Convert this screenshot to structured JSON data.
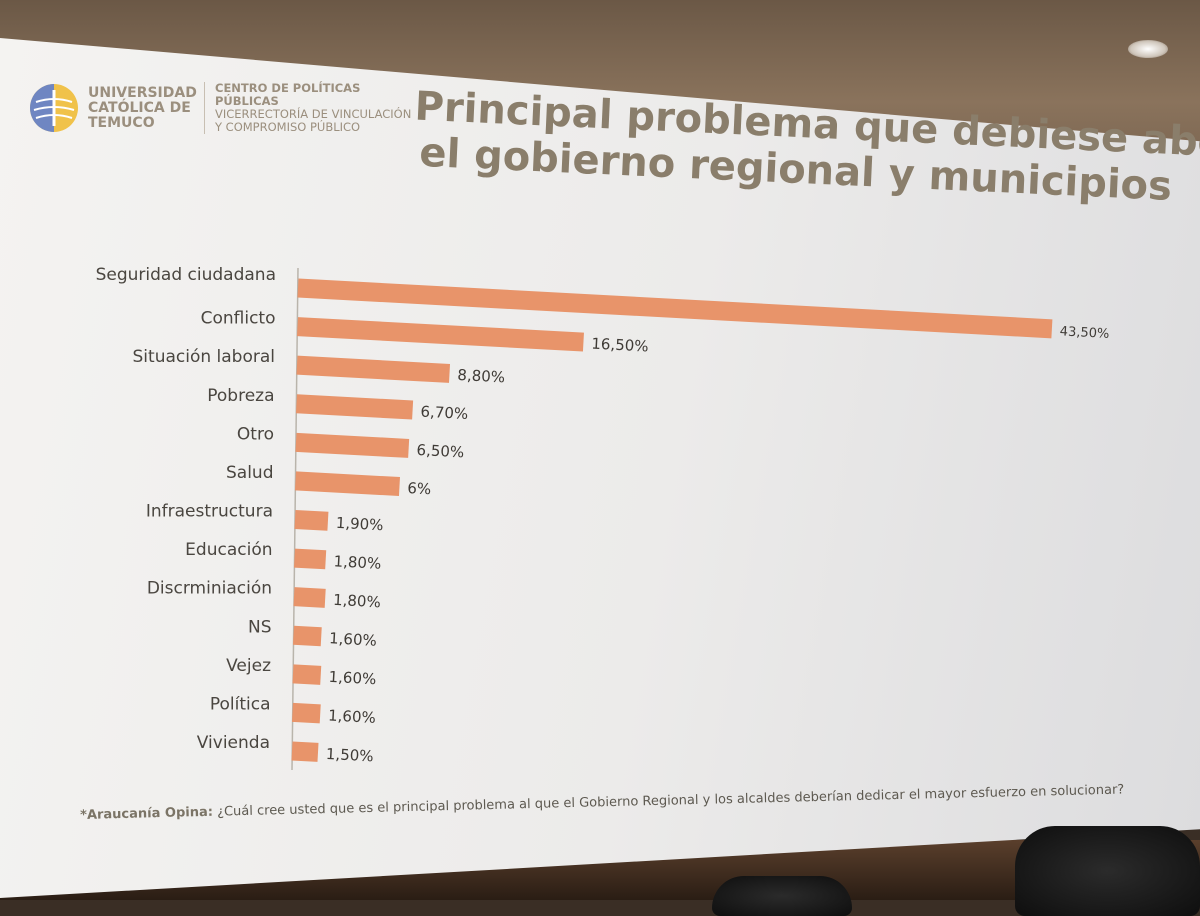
{
  "logo": {
    "university": [
      "UNIVERSIDAD",
      "CATÓLICA DE",
      "TEMUCO"
    ],
    "center_lines": [
      "CENTRO DE POLÍTICAS PÚBLICAS",
      "VICERRECTORÍA DE VINCULACIÓN",
      "Y COMPROMISO PÚBLICO"
    ]
  },
  "chart_data": {
    "type": "bar",
    "orientation": "horizontal",
    "title": "Principal problema que debiese abordar el gobierno regional y municipios",
    "title_lines": [
      "Principal problema que debiese abordar",
      "el gobierno regional y municipios"
    ],
    "categories": [
      "Seguridad ciudadana",
      "Conflicto",
      "Situación laboral",
      "Pobreza",
      "Otro",
      "Salud",
      "Infraestructura",
      "Educación",
      "Discrminiación",
      "NS",
      "Vejez",
      "Política",
      "Vivienda"
    ],
    "values": [
      43.5,
      16.5,
      8.8,
      6.7,
      6.5,
      6,
      1.9,
      1.8,
      1.8,
      1.6,
      1.6,
      1.6,
      1.5
    ],
    "labels": [
      "43,50%",
      "16,50%",
      "8,80%",
      "6,70%",
      "6,50%",
      "6%",
      "1,90%",
      "1,80%",
      "1,80%",
      "1,60%",
      "1,60%",
      "1,60%",
      "1,50%"
    ],
    "bar_color": "#e8946a",
    "xlim": [
      0,
      43.5
    ],
    "grid": false,
    "legend": "none"
  },
  "footnote": {
    "source": "*Araucanía Opina:",
    "question": "¿Cuál cree usted que es el principal problema al que el Gobierno Regional y los alcaldes deberían dedicar el mayor esfuerzo en solucionar?"
  }
}
